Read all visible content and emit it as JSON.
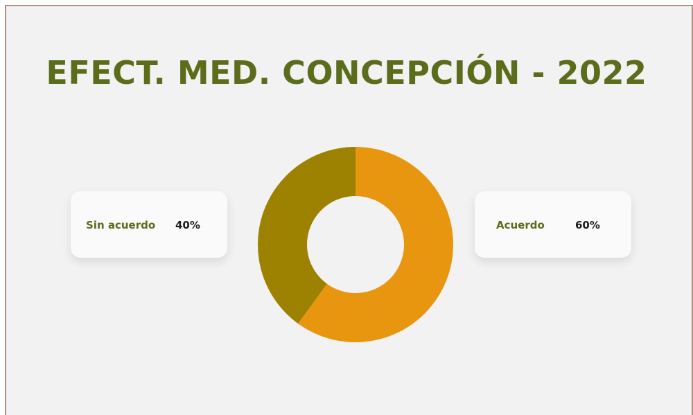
{
  "chart_data": {
    "type": "pie",
    "donut": true,
    "title": "EFECT. MED. CONCEPCIÓN - 2022",
    "categories": [
      "Acuerdo",
      "Sin acuerdo"
    ],
    "values": [
      60,
      40
    ],
    "value_labels": [
      "60%",
      "40%"
    ],
    "colors": [
      "#e8960f",
      "#9c8200"
    ]
  }
}
